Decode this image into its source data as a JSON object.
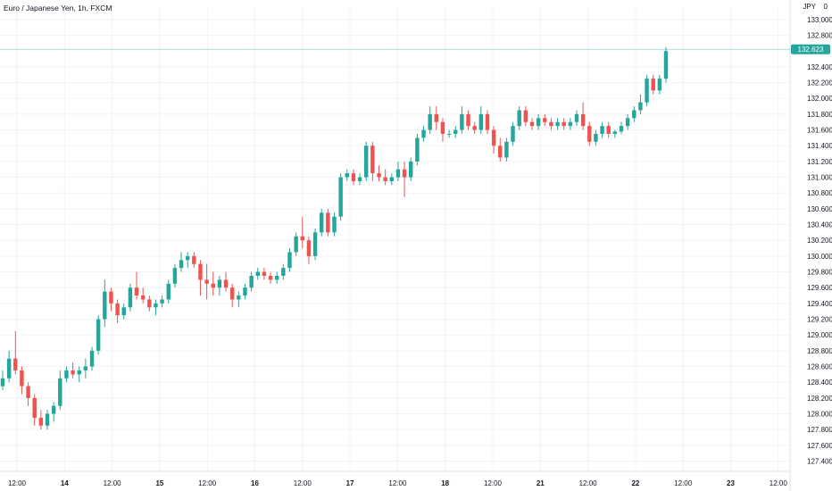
{
  "header": {
    "title": "Euro / Japanese Yen, 1h, FXCM",
    "currency": "JPY",
    "unit_marker": "0"
  },
  "colors": {
    "up": "#26a69a",
    "down": "#ef5350",
    "grid": "#f0f3fa",
    "axis": "#e0e3eb",
    "last_price": "#26a69a"
  },
  "chart_data": {
    "type": "candlestick",
    "title": "Euro / Japanese Yen, 1h, FXCM",
    "ylim": [
      127.27,
      133.18
    ],
    "y_ticks": [
      "127.400",
      "127.600",
      "127.800",
      "128.000",
      "128.200",
      "128.400",
      "128.600",
      "128.800",
      "129.000",
      "129.200",
      "129.400",
      "129.600",
      "129.800",
      "130.000",
      "130.200",
      "130.400",
      "130.600",
      "130.800",
      "131.000",
      "131.200",
      "131.400",
      "131.600",
      "131.800",
      "132.000",
      "132.200",
      "132.400",
      "132.800",
      "133.000"
    ],
    "x_ticks": [
      "12:00",
      "14",
      "12:00",
      "15",
      "12:00",
      "16",
      "12:00",
      "17",
      "12:00",
      "18",
      "12:00",
      "21",
      "12:00",
      "22",
      "12:00",
      "23",
      "12:00"
    ],
    "last_price": 132.623,
    "last_price_label": "132.623",
    "grid": true,
    "candles": [
      [
        128.35,
        128.55,
        128.3,
        128.45
      ],
      [
        128.45,
        128.8,
        128.4,
        128.7
      ],
      [
        128.7,
        129.05,
        128.5,
        128.55
      ],
      [
        128.55,
        128.6,
        128.25,
        128.35
      ],
      [
        128.35,
        128.4,
        128.1,
        128.2
      ],
      [
        128.2,
        128.25,
        127.85,
        127.95
      ],
      [
        127.95,
        128.05,
        127.8,
        127.85
      ],
      [
        127.85,
        128.05,
        127.8,
        128.0
      ],
      [
        128.0,
        128.15,
        127.9,
        128.1
      ],
      [
        128.1,
        128.55,
        128.05,
        128.45
      ],
      [
        128.45,
        128.6,
        128.4,
        128.55
      ],
      [
        128.55,
        128.65,
        128.45,
        128.5
      ],
      [
        128.5,
        128.6,
        128.4,
        128.55
      ],
      [
        128.55,
        128.7,
        128.45,
        128.6
      ],
      [
        128.6,
        128.85,
        128.55,
        128.8
      ],
      [
        128.8,
        129.25,
        128.75,
        129.2
      ],
      [
        129.2,
        129.7,
        129.1,
        129.55
      ],
      [
        129.55,
        129.6,
        129.3,
        129.4
      ],
      [
        129.4,
        129.45,
        129.15,
        129.25
      ],
      [
        129.25,
        129.4,
        129.2,
        129.35
      ],
      [
        129.35,
        129.65,
        129.3,
        129.6
      ],
      [
        129.6,
        129.8,
        129.45,
        129.5
      ],
      [
        129.5,
        129.6,
        129.4,
        129.45
      ],
      [
        129.45,
        129.5,
        129.3,
        129.35
      ],
      [
        129.35,
        129.45,
        129.25,
        129.4
      ],
      [
        129.4,
        129.5,
        129.35,
        129.45
      ],
      [
        129.45,
        129.7,
        129.4,
        129.65
      ],
      [
        129.65,
        129.9,
        129.6,
        129.85
      ],
      [
        129.85,
        130.05,
        129.8,
        129.95
      ],
      [
        129.95,
        130.05,
        129.85,
        130.0
      ],
      [
        130.0,
        130.05,
        129.85,
        129.9
      ],
      [
        129.9,
        129.95,
        129.5,
        129.7
      ],
      [
        129.7,
        129.9,
        129.45,
        129.65
      ],
      [
        129.65,
        129.8,
        129.5,
        129.6
      ],
      [
        129.6,
        129.75,
        129.5,
        129.7
      ],
      [
        129.7,
        129.8,
        129.55,
        129.6
      ],
      [
        129.6,
        129.65,
        129.35,
        129.45
      ],
      [
        129.45,
        129.55,
        129.35,
        129.5
      ],
      [
        129.5,
        129.65,
        129.45,
        129.6
      ],
      [
        129.6,
        129.8,
        129.55,
        129.75
      ],
      [
        129.75,
        129.85,
        129.7,
        129.8
      ],
      [
        129.8,
        129.85,
        129.7,
        129.75
      ],
      [
        129.75,
        129.8,
        129.65,
        129.7
      ],
      [
        129.7,
        129.8,
        129.65,
        129.75
      ],
      [
        129.75,
        129.9,
        129.7,
        129.85
      ],
      [
        129.85,
        130.1,
        129.8,
        130.05
      ],
      [
        130.05,
        130.3,
        130.0,
        130.25
      ],
      [
        130.25,
        130.5,
        130.1,
        130.2
      ],
      [
        130.2,
        130.25,
        129.9,
        130.0
      ],
      [
        130.0,
        130.35,
        129.95,
        130.3
      ],
      [
        130.3,
        130.6,
        130.25,
        130.55
      ],
      [
        130.55,
        130.6,
        130.25,
        130.3
      ],
      [
        130.3,
        130.55,
        130.25,
        130.5
      ],
      [
        130.5,
        131.05,
        130.45,
        131.0
      ],
      [
        131.0,
        131.1,
        130.95,
        131.05
      ],
      [
        131.05,
        131.1,
        130.9,
        130.95
      ],
      [
        130.95,
        131.05,
        130.9,
        131.0
      ],
      [
        131.0,
        131.45,
        130.95,
        131.4
      ],
      [
        131.4,
        131.45,
        130.95,
        131.05
      ],
      [
        131.05,
        131.15,
        130.95,
        131.0
      ],
      [
        131.0,
        131.1,
        130.9,
        130.95
      ],
      [
        130.95,
        131.05,
        130.9,
        131.0
      ],
      [
        131.0,
        131.2,
        130.95,
        131.1
      ],
      [
        131.1,
        131.2,
        130.75,
        131.0
      ],
      [
        131.0,
        131.25,
        130.95,
        131.2
      ],
      [
        131.2,
        131.55,
        131.15,
        131.5
      ],
      [
        131.5,
        131.65,
        131.45,
        131.6
      ],
      [
        131.6,
        131.9,
        131.55,
        131.8
      ],
      [
        131.8,
        131.9,
        131.6,
        131.7
      ],
      [
        131.7,
        131.75,
        131.45,
        131.55
      ],
      [
        131.55,
        131.6,
        131.5,
        131.55
      ],
      [
        131.55,
        131.65,
        131.5,
        131.6
      ],
      [
        131.6,
        131.9,
        131.55,
        131.8
      ],
      [
        131.8,
        131.85,
        131.6,
        131.65
      ],
      [
        131.65,
        131.7,
        131.55,
        131.6
      ],
      [
        131.6,
        131.9,
        131.55,
        131.8
      ],
      [
        131.8,
        131.85,
        131.55,
        131.6
      ],
      [
        131.6,
        131.65,
        131.3,
        131.4
      ],
      [
        131.4,
        131.5,
        131.2,
        131.25
      ],
      [
        131.25,
        131.5,
        131.2,
        131.45
      ],
      [
        131.45,
        131.7,
        131.4,
        131.65
      ],
      [
        131.65,
        131.9,
        131.6,
        131.85
      ],
      [
        131.85,
        131.9,
        131.65,
        131.7
      ],
      [
        131.7,
        131.75,
        131.6,
        131.65
      ],
      [
        131.65,
        131.8,
        131.6,
        131.75
      ],
      [
        131.75,
        131.8,
        131.65,
        131.7
      ],
      [
        131.7,
        131.75,
        131.6,
        131.65
      ],
      [
        131.65,
        131.75,
        131.6,
        131.7
      ],
      [
        131.7,
        131.75,
        131.6,
        131.65
      ],
      [
        131.65,
        131.75,
        131.6,
        131.7
      ],
      [
        131.7,
        131.85,
        131.65,
        131.8
      ],
      [
        131.8,
        131.95,
        131.6,
        131.65
      ],
      [
        131.65,
        131.7,
        131.4,
        131.45
      ],
      [
        131.45,
        131.6,
        131.4,
        131.55
      ],
      [
        131.55,
        131.7,
        131.5,
        131.65
      ],
      [
        131.65,
        131.7,
        131.5,
        131.55
      ],
      [
        131.55,
        131.6,
        131.5,
        131.58
      ],
      [
        131.58,
        131.7,
        131.55,
        131.65
      ],
      [
        131.65,
        131.8,
        131.6,
        131.75
      ],
      [
        131.75,
        131.9,
        131.7,
        131.85
      ],
      [
        131.85,
        132.05,
        131.8,
        131.95
      ],
      [
        131.95,
        132.3,
        131.9,
        132.25
      ],
      [
        132.25,
        132.3,
        132.05,
        132.1
      ],
      [
        132.1,
        132.3,
        132.05,
        132.25
      ],
      [
        132.25,
        132.65,
        132.2,
        132.6
      ]
    ]
  }
}
